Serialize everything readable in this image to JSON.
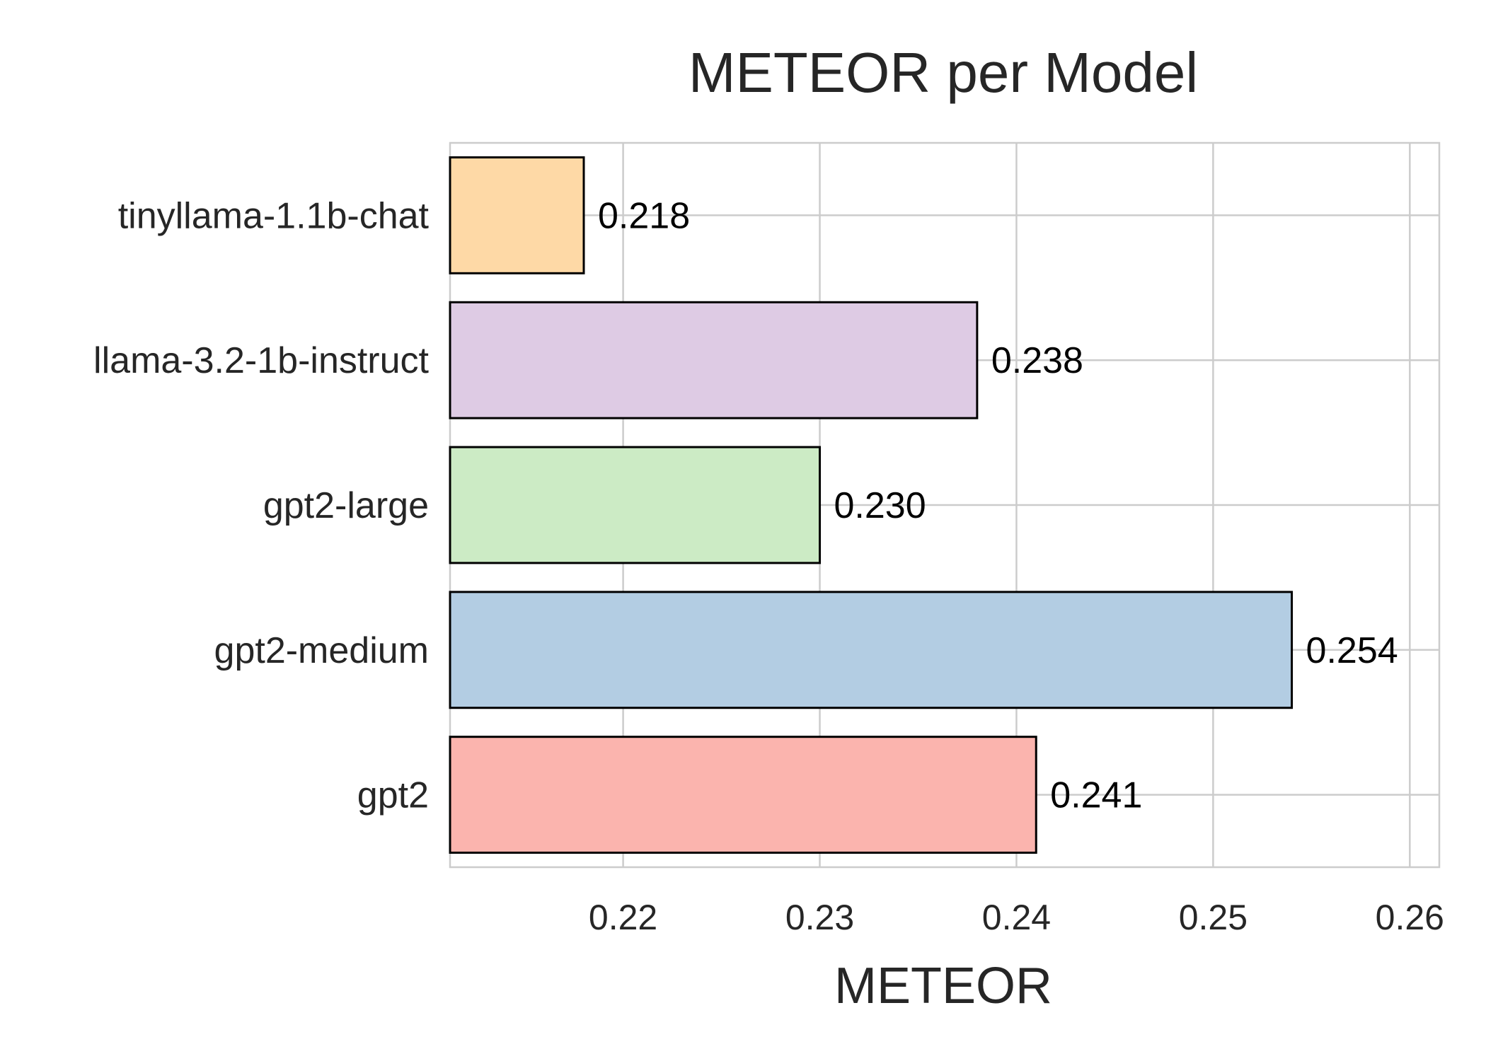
{
  "chart_data": {
    "type": "bar",
    "orientation": "horizontal",
    "title": "METEOR per Model",
    "xlabel": "METEOR",
    "ylabel": "",
    "categories": [
      "gpt2",
      "gpt2-medium",
      "gpt2-large",
      "llama-3.2-1b-instruct",
      "tinyllama-1.1b-chat"
    ],
    "values": [
      0.241,
      0.254,
      0.23,
      0.238,
      0.218
    ],
    "value_labels": [
      "0.241",
      "0.254",
      "0.230",
      "0.238",
      "0.218"
    ],
    "bar_colors": [
      "#fbb4ae",
      "#b3cde3",
      "#ccebc5",
      "#decbe4",
      "#fed9a6"
    ],
    "xlim": [
      0.2112,
      0.2615
    ],
    "xticks": [
      0.22,
      0.23,
      0.24,
      0.25,
      0.26
    ],
    "xtick_labels": [
      "0.22",
      "0.23",
      "0.24",
      "0.25",
      "0.26"
    ],
    "grid": true
  }
}
